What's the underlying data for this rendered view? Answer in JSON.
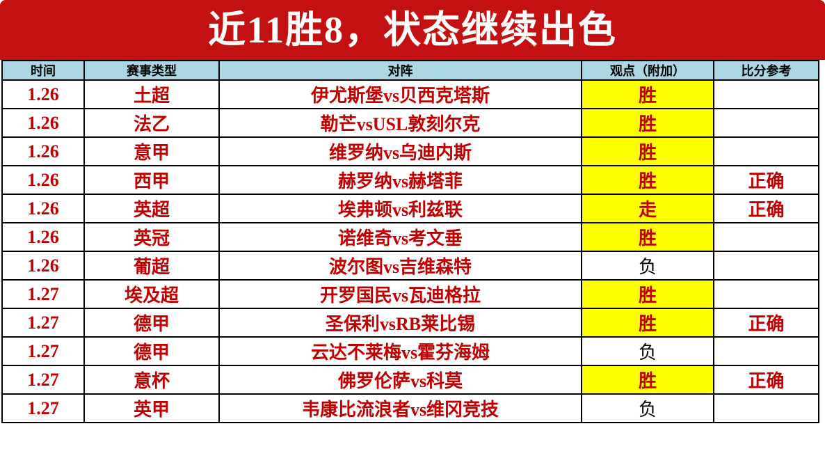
{
  "title": "近11胜8，状态继续出色",
  "colors": {
    "frame_red": "#c31010",
    "header_blue": "#abd7e4",
    "text_red": "#c00000",
    "highlight_yellow": "#ffff00",
    "neutral_black": "#000000"
  },
  "table": {
    "headers": {
      "time": "时间",
      "league": "赛事类型",
      "match": "对阵",
      "verdict": "观点（附加）",
      "result": "比分参考"
    },
    "rows": [
      {
        "date": "1.26",
        "league": "土超",
        "match": "伊尤斯堡vs贝西克塔斯",
        "verdict": "胜",
        "highlight": true,
        "result": ""
      },
      {
        "date": "1.26",
        "league": "法乙",
        "match": "勒芒vsUSL敦刻尔克",
        "verdict": "胜",
        "highlight": true,
        "result": ""
      },
      {
        "date": "1.26",
        "league": "意甲",
        "match": "维罗纳vs乌迪内斯",
        "verdict": "胜",
        "highlight": true,
        "result": ""
      },
      {
        "date": "1.26",
        "league": "西甲",
        "match": "赫罗纳vs赫塔菲",
        "verdict": "胜",
        "highlight": true,
        "result": "正确"
      },
      {
        "date": "1.26",
        "league": "英超",
        "match": "埃弗顿vs利兹联",
        "verdict": "走",
        "highlight": true,
        "result": "正确"
      },
      {
        "date": "1.26",
        "league": "英冠",
        "match": "诺维奇vs考文垂",
        "verdict": "胜",
        "highlight": true,
        "result": ""
      },
      {
        "date": "1.26",
        "league": "葡超",
        "match": "波尔图vs吉维森特",
        "verdict": "负",
        "highlight": false,
        "result": ""
      },
      {
        "date": "1.27",
        "league": "埃及超",
        "match": "开罗国民vs瓦迪格拉",
        "verdict": "胜",
        "highlight": true,
        "result": ""
      },
      {
        "date": "1.27",
        "league": "德甲",
        "match": "圣保利vsRB莱比锡",
        "verdict": "胜",
        "highlight": true,
        "result": "正确"
      },
      {
        "date": "1.27",
        "league": "德甲",
        "match": "云达不莱梅vs霍芬海姆",
        "verdict": "负",
        "highlight": false,
        "result": ""
      },
      {
        "date": "1.27",
        "league": "意杯",
        "match": "佛罗伦萨vs科莫",
        "verdict": "胜",
        "highlight": true,
        "result": "正确"
      },
      {
        "date": "1.27",
        "league": "英甲",
        "match": "韦康比流浪者vs维冈竞技",
        "verdict": "负",
        "highlight": false,
        "result": ""
      }
    ]
  }
}
